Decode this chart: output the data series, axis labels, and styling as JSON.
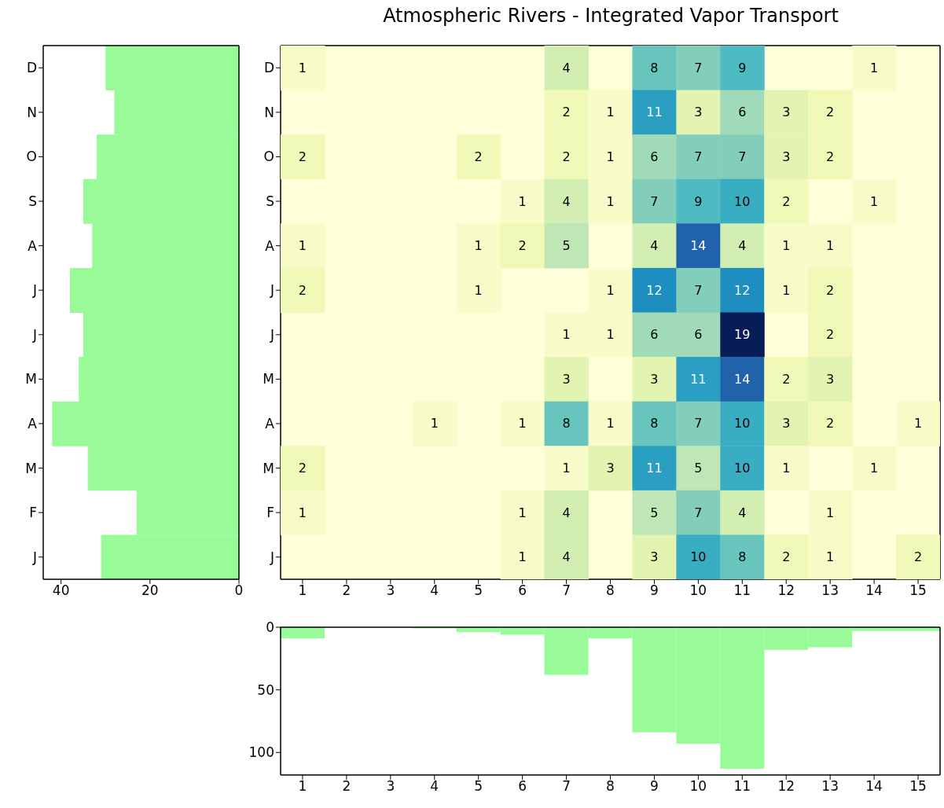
{
  "chart_data": [
    {
      "type": "heatmap",
      "title": "Atmospheric Rivers - Integrated Vapor Transport",
      "categories": [
        "1",
        "2",
        "3",
        "4",
        "5",
        "6",
        "7",
        "8",
        "9",
        "10",
        "11",
        "12",
        "13",
        "14",
        "15"
      ],
      "y_categories": [
        "D",
        "N",
        "O",
        "S",
        "A",
        "J",
        "J",
        "M",
        "A",
        "M",
        "F",
        "J"
      ],
      "cells": [
        [
          1,
          null,
          null,
          null,
          null,
          null,
          4,
          null,
          8,
          7,
          9,
          null,
          null,
          1,
          null
        ],
        [
          null,
          null,
          null,
          null,
          null,
          null,
          2,
          1,
          11,
          3,
          6,
          3,
          2,
          null,
          null
        ],
        [
          2,
          null,
          null,
          null,
          2,
          null,
          2,
          1,
          6,
          7,
          7,
          3,
          2,
          null,
          null
        ],
        [
          null,
          null,
          null,
          null,
          null,
          1,
          4,
          1,
          7,
          9,
          10,
          2,
          null,
          1,
          null
        ],
        [
          1,
          null,
          null,
          null,
          1,
          2,
          5,
          null,
          4,
          14,
          4,
          1,
          1,
          null,
          null
        ],
        [
          2,
          null,
          null,
          null,
          1,
          null,
          null,
          1,
          12,
          7,
          12,
          1,
          2,
          null,
          null
        ],
        [
          null,
          null,
          null,
          null,
          null,
          null,
          1,
          1,
          6,
          6,
          19,
          null,
          2,
          null,
          null
        ],
        [
          null,
          null,
          null,
          null,
          null,
          null,
          3,
          null,
          3,
          11,
          14,
          2,
          3,
          null,
          null
        ],
        [
          null,
          null,
          null,
          1,
          null,
          1,
          8,
          1,
          8,
          7,
          10,
          3,
          2,
          null,
          1
        ],
        [
          2,
          null,
          null,
          null,
          null,
          null,
          1,
          3,
          11,
          5,
          10,
          1,
          null,
          1,
          null
        ],
        [
          1,
          null,
          null,
          null,
          null,
          1,
          4,
          null,
          5,
          7,
          4,
          null,
          1,
          null,
          null
        ],
        [
          null,
          null,
          null,
          null,
          null,
          1,
          4,
          null,
          3,
          10,
          8,
          2,
          1,
          null,
          2
        ]
      ],
      "data_labels": true
    },
    {
      "type": "bar",
      "orientation": "horizontal",
      "categories": [
        "D",
        "N",
        "O",
        "S",
        "A",
        "J",
        "J",
        "M",
        "A",
        "M",
        "F",
        "J"
      ],
      "values": [
        30,
        28,
        32,
        35,
        33,
        38,
        35,
        36,
        42,
        34,
        23,
        31
      ],
      "color": "#98fb98",
      "xlim": [
        44,
        0
      ],
      "xticks": [
        40,
        20,
        0
      ]
    },
    {
      "type": "bar",
      "categories": [
        "1",
        "2",
        "3",
        "4",
        "5",
        "6",
        "7",
        "8",
        "9",
        "10",
        "11",
        "12",
        "13",
        "14",
        "15"
      ],
      "values": [
        9,
        0,
        0,
        1,
        4,
        6,
        38,
        9,
        84,
        93,
        113,
        18,
        16,
        3,
        3
      ],
      "color": "#98fb98",
      "ylim": [
        118,
        0
      ],
      "yticks": [
        0,
        50,
        100
      ]
    }
  ]
}
